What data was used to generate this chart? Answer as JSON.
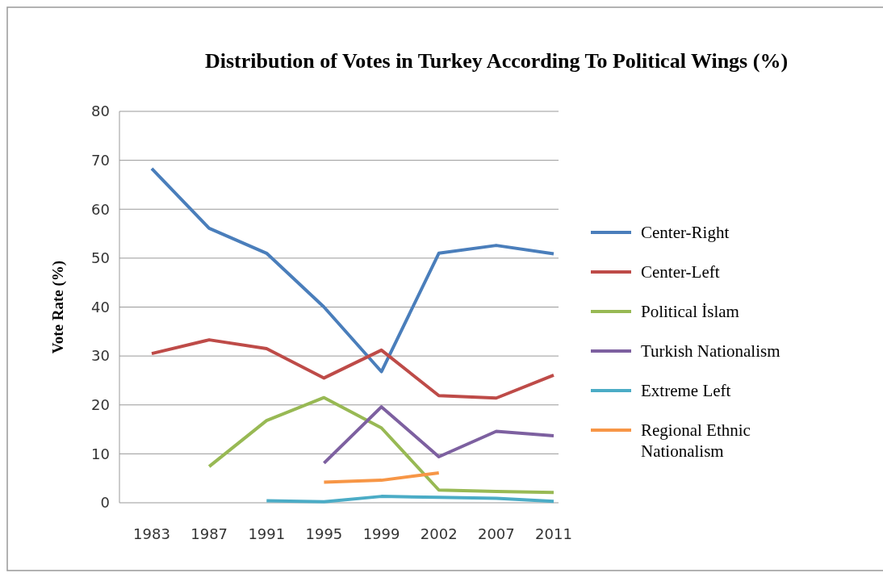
{
  "chart_data": {
    "type": "line",
    "title": "Distribution of Votes in Turkey According To Political Wings (%)",
    "ylabel": "Vote Rate (%)",
    "categories": [
      "1983",
      "1987",
      "1991",
      "1995",
      "1999",
      "2002",
      "2007",
      "2011"
    ],
    "series": [
      {
        "name": "Center-Right",
        "color": "#4a7ebb",
        "values": [
          68.3,
          56.1,
          51,
          40,
          26.8,
          51,
          52.6,
          50.9
        ]
      },
      {
        "name": "Center-Left",
        "color": "#be4b48",
        "values": [
          30.5,
          33.3,
          31.5,
          25.5,
          31.2,
          21.9,
          21.4,
          26.1
        ]
      },
      {
        "name": "Political İslam",
        "color": "#98b954",
        "values": [
          null,
          7.4,
          16.8,
          21.5,
          15.3,
          2.6,
          2.3,
          2.1
        ]
      },
      {
        "name": "Turkish Nationalism",
        "color": "#7d60a0",
        "values": [
          null,
          null,
          null,
          8.1,
          19.6,
          9.4,
          14.6,
          13.7
        ]
      },
      {
        "name": "Extreme Left",
        "color": "#4bacc6",
        "values": [
          null,
          null,
          0.4,
          0.2,
          1.3,
          1.1,
          0.9,
          0.3
        ]
      },
      {
        "name": "Regional Ethnic Nationalism",
        "color": "#f79646",
        "values": [
          null,
          null,
          null,
          4.2,
          4.6,
          6.1,
          null,
          null
        ]
      }
    ],
    "ylim": [
      0,
      80
    ],
    "yticks": [
      0,
      10,
      20,
      30,
      40,
      50,
      60,
      70,
      80
    ],
    "grid": "y",
    "legend": "right",
    "marker": "none",
    "line_style": "solid"
  }
}
